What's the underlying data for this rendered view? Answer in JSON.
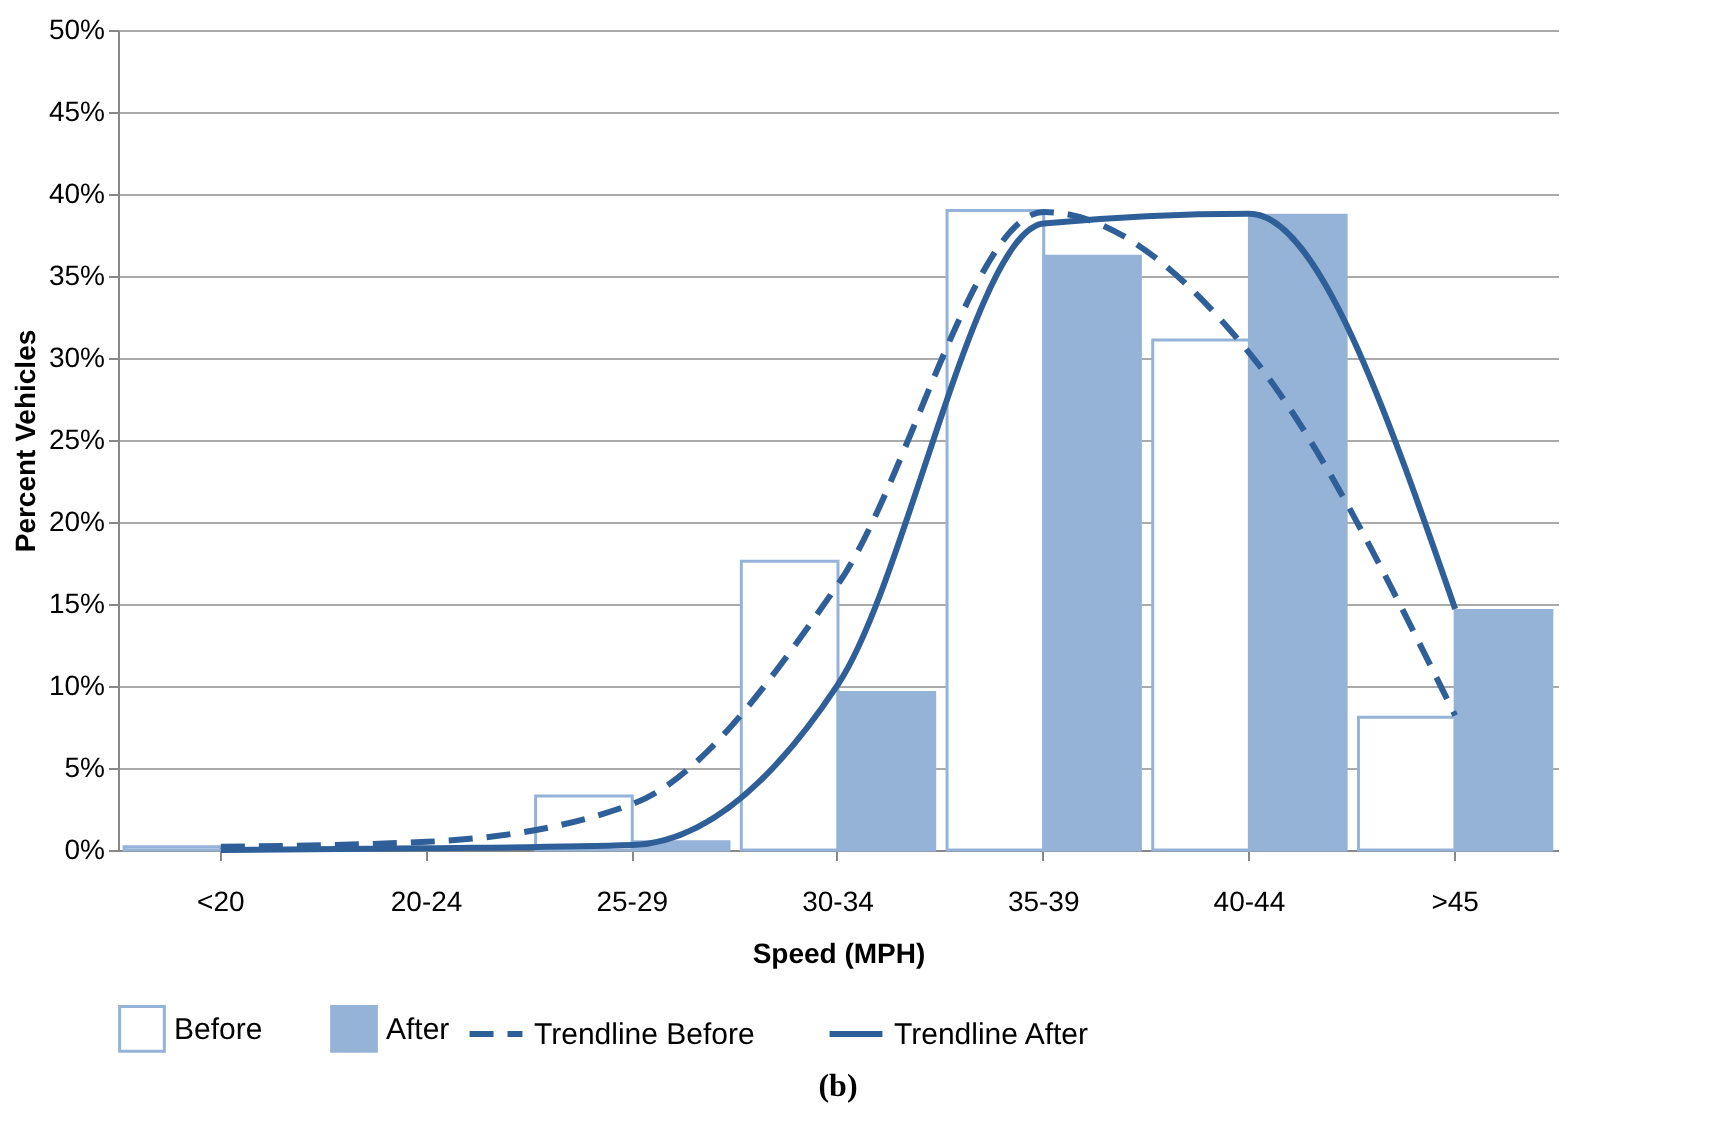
{
  "chart_data": {
    "type": "bar",
    "categories": [
      "<20",
      "20-24",
      "25-29",
      "30-34",
      "35-39",
      "40-44",
      ">45"
    ],
    "xlabel": "Speed (MPH)",
    "ylabel": "Percent Vehicles",
    "ylim": [
      0,
      50
    ],
    "yticks": [
      {
        "value": 0,
        "label": "0%"
      },
      {
        "value": 5,
        "label": "5%"
      },
      {
        "value": 10,
        "label": "10%"
      },
      {
        "value": 15,
        "label": "15%"
      },
      {
        "value": 20,
        "label": "20%"
      },
      {
        "value": 25,
        "label": "25%"
      },
      {
        "value": 30,
        "label": "30%"
      },
      {
        "value": 35,
        "label": "35%"
      },
      {
        "value": 40,
        "label": "40%"
      },
      {
        "value": 45,
        "label": "45%"
      },
      {
        "value": 50,
        "label": "50%"
      }
    ],
    "grid": "y",
    "legend": "bottom",
    "series": [
      {
        "name": "Before",
        "color": "#95b3d7",
        "values": [
          0.2,
          null,
          3.3,
          17.6,
          39.0,
          31.1,
          8.1
        ]
      },
      {
        "name": "After",
        "color": "#95b3d7",
        "values": [
          null,
          null,
          0.5,
          9.6,
          36.2,
          38.7,
          14.6
        ]
      },
      {
        "name": "Trendline Before",
        "type": "line",
        "line_style": "dashed",
        "color": "#2f5f98",
        "values": [
          0.2,
          0.5,
          2.8,
          16.2,
          38.9,
          30.3,
          8.2
        ]
      },
      {
        "name": "Trendline After",
        "type": "line",
        "line_style": "solid",
        "color": "#2f5f98",
        "values": [
          0.0,
          0.1,
          0.3,
          10.1,
          38.2,
          38.8,
          14.7
        ]
      }
    ],
    "annotations": [
      "(b)"
    ]
  }
}
